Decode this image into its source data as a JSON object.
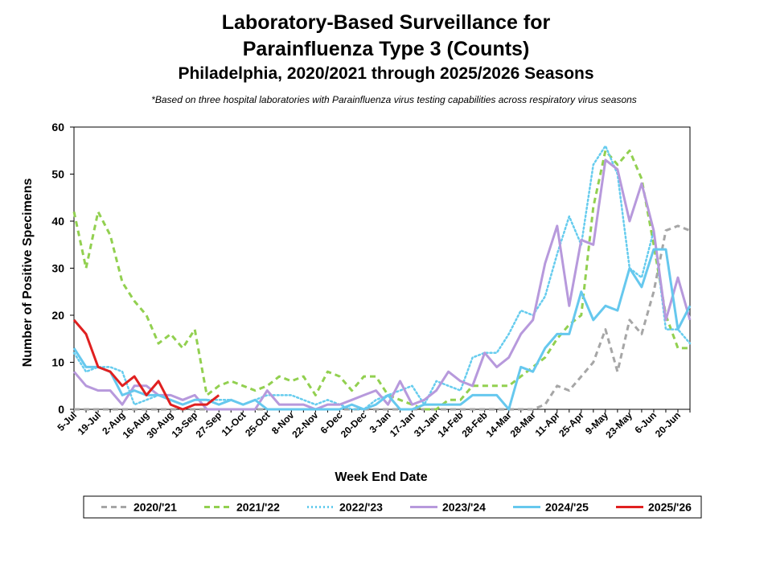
{
  "chart_data": {
    "type": "line",
    "title": "Laboratory-Based Surveillance for",
    "title_line2": "Parainfluenza Type 3 (Counts)",
    "subtitle": "Philadelphia, 2020/2021 through 2025/2026 Seasons",
    "note": "*Based on three hospital laboratories with Parainfluenza virus testing capabilities across respiratory virus seasons",
    "xlabel": "Week End Date",
    "ylabel": "Number of Positive Specimens",
    "ylim": [
      0,
      60
    ],
    "yticks": [
      0,
      10,
      20,
      30,
      40,
      50,
      60
    ],
    "grid": false,
    "legend_position": "bottom",
    "x_tick_labels": [
      "5-Jul",
      "19-Jul",
      "2-Aug",
      "16-Aug",
      "30-Aug",
      "13-Sep",
      "27-Sep",
      "11-Oct",
      "25-Oct",
      "8-Nov",
      "22-Nov",
      "6-Dec",
      "20-Dec",
      "3-Jan",
      "17-Jan",
      "31-Jan",
      "14-Feb",
      "28-Feb",
      "14-Mar",
      "28-Mar",
      "11-Apr",
      "25-Apr",
      "9-May",
      "23-May",
      "6-Jun",
      "20-Jun"
    ],
    "weeks": [
      "5-Jul",
      "12-Jul",
      "19-Jul",
      "26-Jul",
      "2-Aug",
      "9-Aug",
      "16-Aug",
      "23-Aug",
      "30-Aug",
      "6-Sep",
      "13-Sep",
      "20-Sep",
      "27-Sep",
      "4-Oct",
      "11-Oct",
      "18-Oct",
      "25-Oct",
      "1-Nov",
      "8-Nov",
      "15-Nov",
      "22-Nov",
      "29-Nov",
      "6-Dec",
      "13-Dec",
      "20-Dec",
      "27-Dec",
      "3-Jan",
      "10-Jan",
      "17-Jan",
      "24-Jan",
      "31-Jan",
      "7-Feb",
      "14-Feb",
      "21-Feb",
      "28-Feb",
      "7-Mar",
      "14-Mar",
      "21-Mar",
      "28-Mar",
      "4-Apr",
      "11-Apr",
      "18-Apr",
      "25-Apr",
      "2-May",
      "9-May",
      "16-May",
      "23-May",
      "30-May",
      "6-Jun",
      "13-Jun",
      "20-Jun",
      "27-Jun"
    ],
    "series": [
      {
        "name": "2020/'21",
        "color": "#a6a6a6",
        "dash": "dashed",
        "values": [
          0,
          0,
          0,
          0,
          0,
          0,
          0,
          0,
          0,
          0,
          0,
          0,
          0,
          0,
          0,
          0,
          0,
          0,
          0,
          0,
          0,
          0,
          0,
          0,
          0,
          0,
          0,
          0,
          0,
          0,
          0,
          0,
          0,
          0,
          0,
          0,
          0,
          0,
          0,
          1,
          5,
          4,
          7,
          10,
          17,
          8,
          19,
          16,
          25,
          38,
          39,
          38
        ]
      },
      {
        "name": "2021/'22",
        "color": "#92d050",
        "dash": "dashed",
        "values": [
          42,
          30,
          42,
          37,
          27,
          23,
          20,
          14,
          16,
          13,
          17,
          3,
          5,
          6,
          5,
          4,
          5,
          7,
          6,
          7,
          3,
          8,
          7,
          4,
          7,
          7,
          3,
          2,
          1,
          0,
          0,
          2,
          2,
          5,
          5,
          5,
          5,
          7,
          9,
          11,
          15,
          18,
          20,
          43,
          55,
          52,
          55,
          49,
          35,
          20,
          13,
          13
        ]
      },
      {
        "name": "2022/'23",
        "color": "#66ccee",
        "dash": "dotted",
        "values": [
          12,
          8,
          9,
          9,
          8,
          1,
          2,
          3,
          2,
          1,
          2,
          2,
          2,
          2,
          1,
          2,
          3,
          3,
          3,
          2,
          1,
          2,
          1,
          0,
          0,
          2,
          3,
          4,
          5,
          1,
          6,
          5,
          4,
          11,
          12,
          12,
          16,
          21,
          20,
          24,
          33,
          41,
          35,
          52,
          56,
          50,
          30,
          28,
          38,
          17,
          17,
          14
        ]
      },
      {
        "name": "2023/'24",
        "color": "#b799dc",
        "dash": "solid",
        "values": [
          8,
          5,
          4,
          4,
          1,
          5,
          5,
          3,
          3,
          2,
          3,
          0,
          0,
          0,
          0,
          0,
          4,
          1,
          1,
          1,
          0,
          1,
          1,
          2,
          3,
          4,
          1,
          6,
          1,
          2,
          4,
          8,
          6,
          5,
          12,
          9,
          11,
          16,
          19,
          31,
          39,
          22,
          36,
          35,
          53,
          51,
          40,
          48,
          38,
          19,
          28,
          19
        ]
      },
      {
        "name": "2024/'25",
        "color": "#66c8ee",
        "dash": "solid",
        "values": [
          13,
          9,
          9,
          8,
          3,
          4,
          3,
          3,
          2,
          1,
          2,
          2,
          1,
          2,
          1,
          2,
          0,
          0,
          0,
          0,
          0,
          0,
          0,
          1,
          0,
          1,
          3,
          0,
          0,
          1,
          1,
          1,
          1,
          3,
          3,
          3,
          0,
          9,
          8,
          13,
          16,
          16,
          25,
          19,
          22,
          21,
          30,
          26,
          34,
          34,
          17,
          22
        ]
      },
      {
        "name": "2025/'26",
        "color": "#e02020",
        "dash": "solid",
        "values": [
          19,
          16,
          9,
          8,
          5,
          7,
          3,
          6,
          1,
          0,
          1,
          1,
          3
        ]
      }
    ]
  }
}
